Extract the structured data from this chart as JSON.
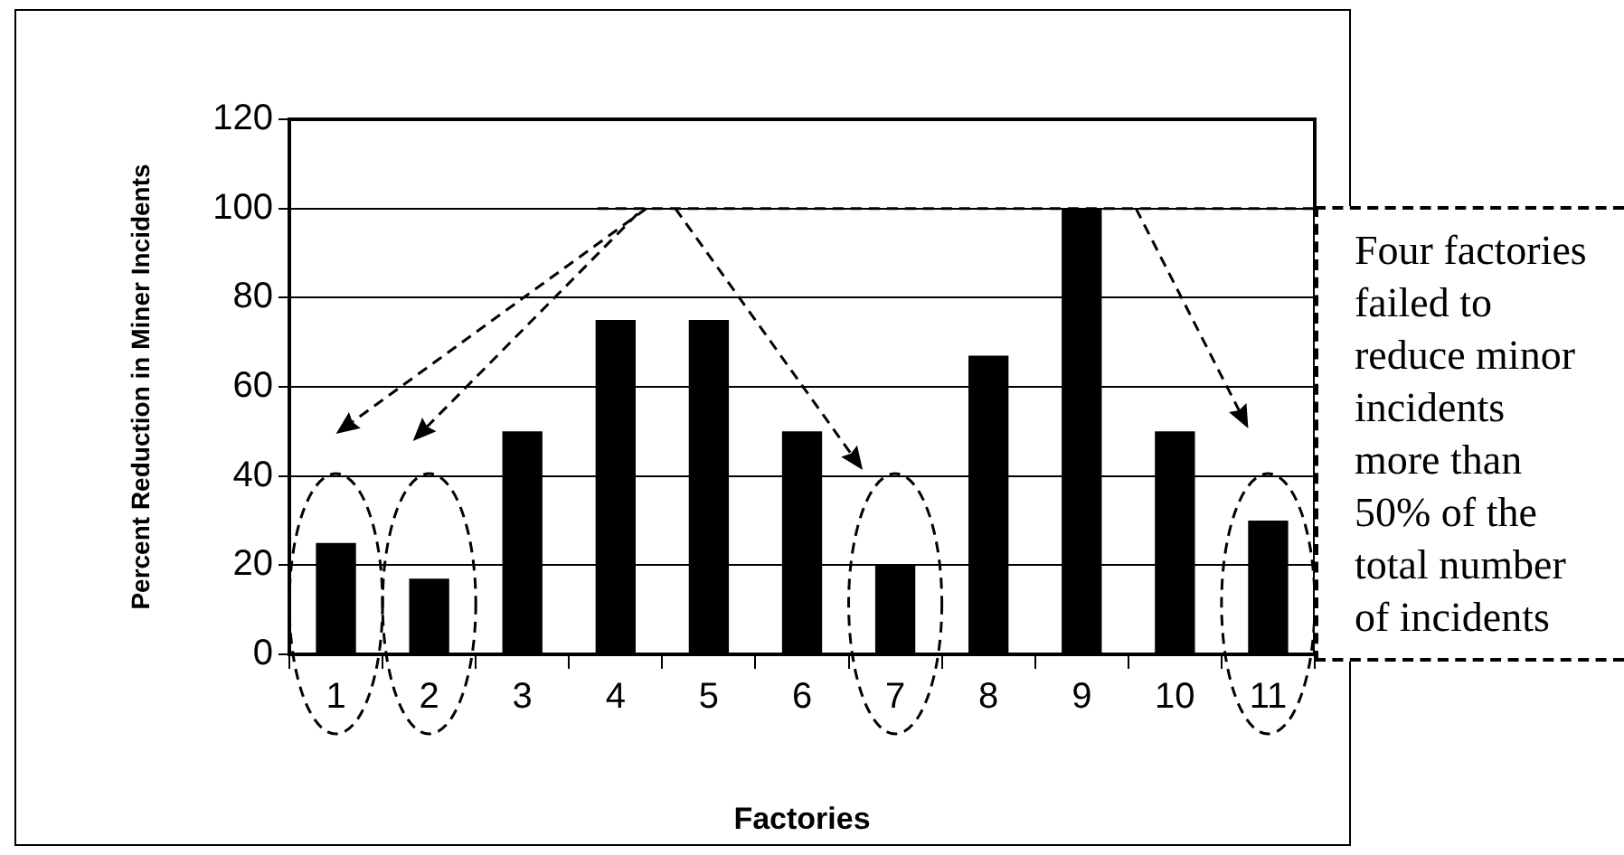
{
  "chart_data": {
    "type": "bar",
    "xlabel": "Factories",
    "ylabel": "Percent Reduction in Miner Incidents",
    "categories": [
      "1",
      "2",
      "3",
      "4",
      "5",
      "6",
      "7",
      "8",
      "9",
      "10",
      "11"
    ],
    "values": [
      25,
      17,
      50,
      75,
      75,
      50,
      20,
      67,
      100,
      50,
      30
    ],
    "color": "#000000",
    "ylim": [
      0,
      120
    ],
    "yticks": [
      0,
      20,
      40,
      60,
      80,
      100,
      120
    ],
    "grid": "y",
    "annotations": [
      "Four factories failed to reduce minor incidents more than 50% of the total number of incidents"
    ]
  }
}
